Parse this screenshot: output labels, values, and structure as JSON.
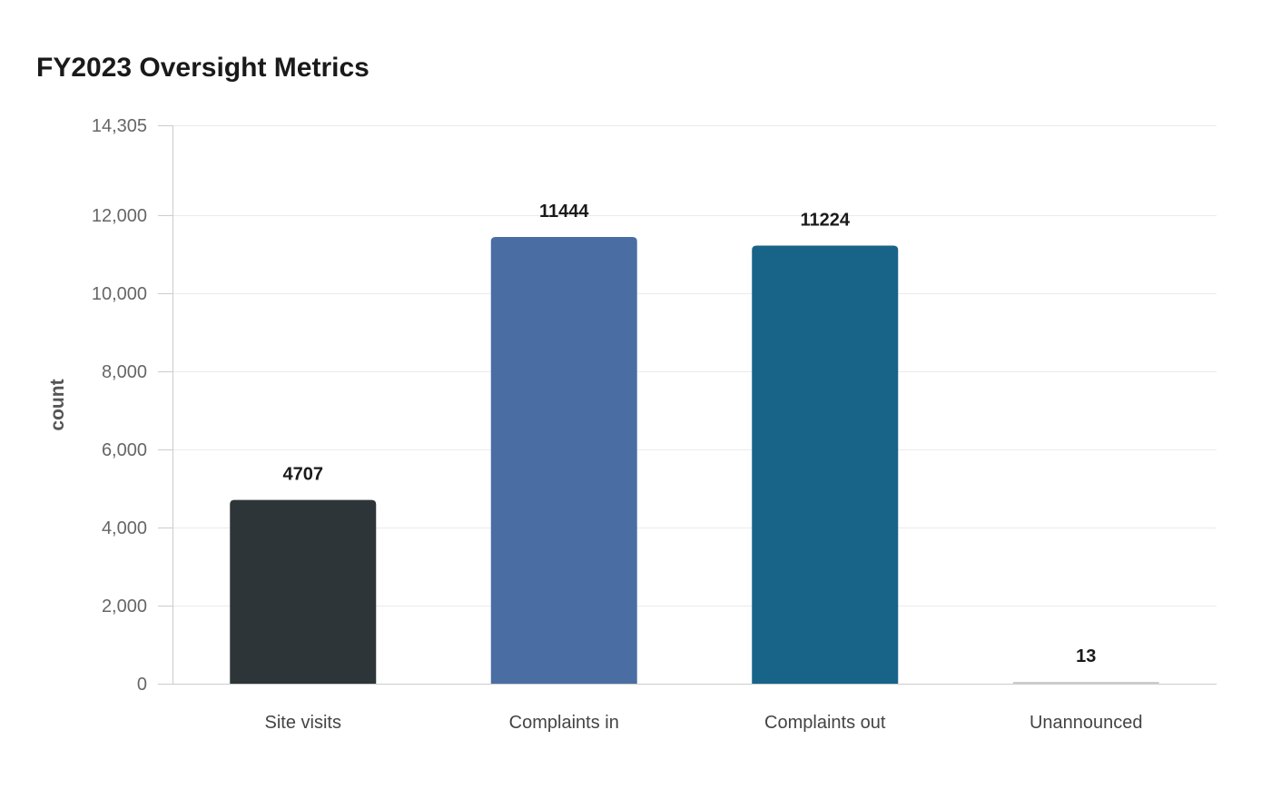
{
  "chart_data": {
    "type": "bar",
    "title": "FY2023 Oversight Metrics",
    "xlabel": "",
    "ylabel": "count",
    "categories": [
      "Site visits",
      "Complaints in",
      "Complaints out",
      "Unannounced"
    ],
    "values": [
      4707,
      11444,
      11224,
      13
    ],
    "data_labels": [
      "4707",
      "11444",
      "11224",
      "13"
    ],
    "colors": [
      "#2e3538",
      "#4a6ea3",
      "#186388",
      "#cccccc"
    ],
    "ylim": [
      0,
      14305
    ],
    "yticks": [
      0,
      2000,
      4000,
      6000,
      8000,
      10000,
      12000,
      14305
    ],
    "ytick_labels": [
      "0",
      "2,000",
      "4,000",
      "6,000",
      "8,000",
      "10,000",
      "12,000",
      "14,305"
    ],
    "grid": true,
    "legend": "none"
  }
}
